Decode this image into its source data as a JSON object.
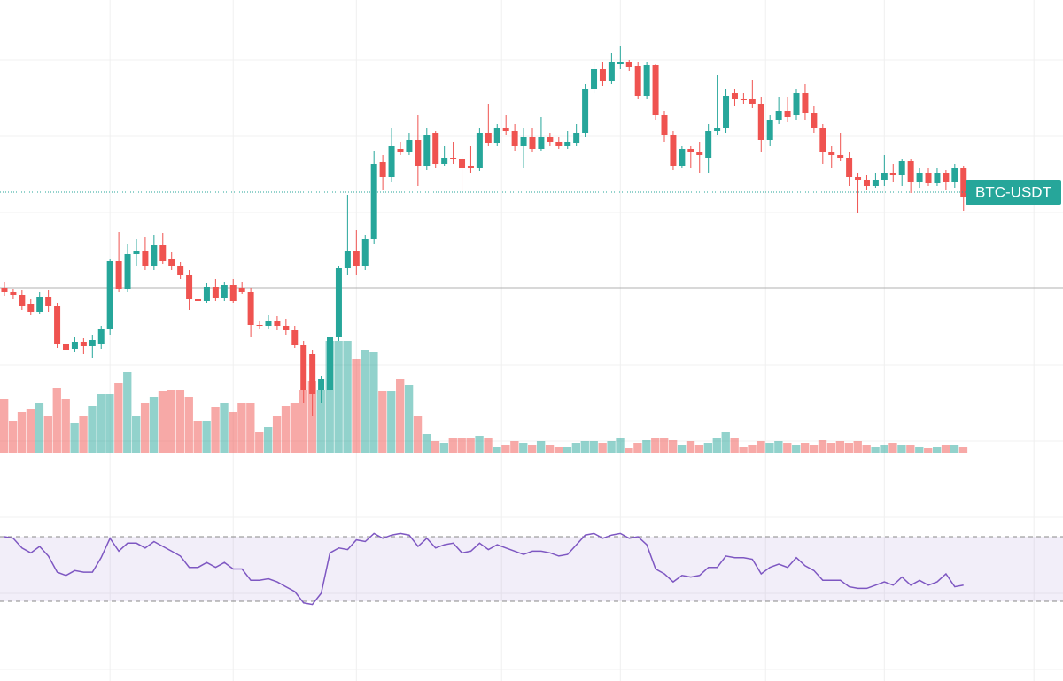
{
  "chart_data": {
    "type": "candlestick",
    "symbol": "BTC-USDT",
    "categories": [
      null,
      null,
      null,
      null,
      null,
      null,
      null,
      null,
      null,
      null,
      null,
      null,
      null,
      null,
      null,
      null,
      null,
      null,
      null,
      null,
      null,
      null,
      null,
      null,
      null,
      null,
      null,
      null,
      null,
      null,
      null,
      null,
      null,
      null,
      null,
      null,
      null,
      null,
      null,
      null,
      null,
      null,
      null,
      null,
      null,
      null,
      null,
      null,
      null,
      null,
      null,
      null,
      null,
      null,
      null,
      null,
      null,
      null,
      null,
      null,
      null,
      null,
      null,
      null,
      null,
      null,
      null,
      null,
      null,
      null,
      null,
      null,
      null,
      null,
      null,
      null,
      null,
      null,
      null,
      null,
      null,
      null,
      null,
      null,
      null,
      null,
      null,
      null,
      null,
      null,
      null,
      null,
      null,
      null,
      null,
      null,
      null,
      null,
      null,
      null,
      null,
      null,
      null,
      null,
      null,
      null,
      null,
      null,
      null,
      null
    ],
    "open": [
      444,
      439,
      436,
      426,
      417,
      434,
      424,
      381,
      375,
      383,
      378,
      381,
      397,
      474,
      443,
      482,
      486,
      469,
      492,
      477,
      469,
      459,
      431,
      429,
      445,
      433,
      447,
      444,
      439,
      402,
      401,
      407,
      401,
      396,
      379,
      369,
      329,
      329,
      389,
      466,
      486,
      469,
      499,
      586,
      569,
      601,
      597,
      611,
      581,
      619,
      584,
      591,
      589,
      581,
      579,
      619,
      607,
      624,
      621,
      604,
      614,
      601,
      614,
      609,
      604,
      607,
      619,
      669,
      691,
      677,
      697,
      699,
      695,
      661,
      696,
      639,
      617,
      581,
      601,
      597,
      591,
      621,
      624,
      664,
      657,
      657,
      651,
      611,
      634,
      644,
      639,
      664,
      641,
      624,
      597,
      594,
      591,
      569,
      566,
      559,
      566,
      574,
      571,
      587,
      564,
      574,
      562,
      574,
      564,
      579
    ],
    "high": [
      451,
      443,
      441,
      431,
      439,
      441,
      427,
      387,
      389,
      387,
      391,
      401,
      477,
      507,
      494,
      499,
      501,
      504,
      506,
      484,
      473,
      464,
      434,
      449,
      454,
      451,
      454,
      451,
      444,
      407,
      413,
      412,
      409,
      401,
      384,
      374,
      344,
      394,
      469,
      549,
      509,
      504,
      599,
      594,
      624,
      609,
      619,
      639,
      624,
      621,
      604,
      609,
      594,
      604,
      624,
      651,
      629,
      639,
      629,
      624,
      624,
      637,
      619,
      614,
      621,
      629,
      674,
      699,
      699,
      709,
      717,
      701,
      699,
      699,
      697,
      644,
      621,
      604,
      604,
      609,
      629,
      684,
      669,
      669,
      664,
      679,
      659,
      639,
      659,
      659,
      669,
      674,
      649,
      629,
      604,
      619,
      597,
      574,
      571,
      574,
      594,
      584,
      589,
      589,
      579,
      579,
      579,
      577,
      584,
      581
    ],
    "low": [
      435,
      431,
      419,
      413,
      414,
      417,
      376,
      369,
      371,
      369,
      365,
      375,
      391,
      439,
      439,
      469,
      464,
      464,
      471,
      464,
      454,
      419,
      416,
      427,
      429,
      429,
      427,
      437,
      389,
      397,
      397,
      396,
      391,
      376,
      314,
      299,
      314,
      321,
      384,
      459,
      459,
      464,
      494,
      554,
      564,
      594,
      594,
      559,
      577,
      579,
      581,
      584,
      554,
      574,
      576,
      604,
      604,
      617,
      599,
      579,
      597,
      599,
      604,
      601,
      601,
      604,
      614,
      664,
      672,
      674,
      691,
      689,
      657,
      657,
      634,
      609,
      577,
      579,
      579,
      574,
      574,
      617,
      619,
      649,
      651,
      647,
      597,
      604,
      629,
      631,
      634,
      634,
      619,
      584,
      579,
      587,
      559,
      529,
      554,
      557,
      559,
      564,
      559,
      551,
      557,
      559,
      559,
      554,
      557,
      531
    ],
    "close": [
      439,
      436,
      424,
      417,
      434,
      423,
      381,
      374,
      383,
      378,
      385,
      397,
      474,
      443,
      482,
      486,
      469,
      492,
      474,
      469,
      459,
      431,
      429,
      445,
      433,
      447,
      429,
      439,
      402,
      401,
      407,
      401,
      396,
      379,
      329,
      324,
      341,
      389,
      466,
      486,
      469,
      499,
      584,
      569,
      604,
      597,
      611,
      581,
      617,
      584,
      591,
      589,
      579,
      579,
      619,
      607,
      624,
      621,
      604,
      614,
      601,
      614,
      609,
      604,
      609,
      619,
      669,
      691,
      677,
      699,
      699,
      693,
      661,
      696,
      639,
      617,
      581,
      601,
      597,
      594,
      621,
      624,
      661,
      657,
      656,
      651,
      611,
      634,
      644,
      637,
      664,
      641,
      624,
      597,
      594,
      591,
      569,
      566,
      559,
      566,
      574,
      571,
      587,
      564,
      574,
      562,
      574,
      564,
      579,
      547
    ],
    "up_color": "#26a69a",
    "down_color": "#ef5350",
    "ylim": [
      0,
      769
    ],
    "yticks": [
      701,
      615,
      529,
      357,
      271,
      185,
      99,
      13
    ],
    "xlim": [
      -0.5,
      120.3
    ],
    "xticks": [
      12,
      26,
      40,
      56.5,
      70,
      86.5,
      100,
      117
    ],
    "grid": true,
    "last_price": 552,
    "base_line": 444,
    "volume": [
      61,
      36,
      46,
      49,
      56,
      41,
      73,
      61,
      33,
      41,
      53,
      66,
      66,
      79,
      91,
      41,
      56,
      63,
      69,
      71,
      71,
      63,
      36,
      36,
      51,
      56,
      46,
      56,
      56,
      23,
      29,
      41,
      53,
      56,
      71,
      81,
      71,
      126,
      126,
      126,
      106,
      116,
      113,
      69,
      69,
      83,
      76,
      41,
      21,
      13,
      11,
      16,
      16,
      16,
      19,
      16,
      6,
      8,
      13,
      11,
      8,
      13,
      8,
      6,
      6,
      11,
      13,
      13,
      11,
      13,
      16,
      5,
      11,
      14,
      16,
      16,
      14,
      8,
      13,
      9,
      11,
      16,
      23,
      16,
      6,
      9,
      13,
      11,
      13,
      11,
      8,
      11,
      8,
      14,
      11,
      13,
      11,
      13,
      8,
      6,
      8,
      11,
      8,
      8,
      6,
      5,
      6,
      8,
      8,
      6
    ],
    "volume_ylim": [
      0,
      140
    ],
    "rsi": [
      70,
      69,
      63,
      60,
      64,
      58,
      48,
      46,
      49,
      48,
      48,
      57,
      69,
      61,
      66,
      66,
      63,
      67,
      64,
      61,
      58,
      51,
      51,
      54,
      51,
      54,
      50,
      50,
      43,
      43,
      44,
      42,
      39,
      36,
      29,
      28,
      35,
      60,
      63,
      62,
      68,
      67,
      72,
      69,
      71,
      72,
      71,
      64,
      69,
      63,
      65,
      66,
      60,
      61,
      66,
      62,
      65,
      63,
      61,
      59,
      61,
      61,
      60,
      58,
      59,
      65,
      71,
      72,
      69,
      71,
      72,
      69,
      70,
      65,
      50,
      47,
      42,
      46,
      45,
      46,
      51,
      51,
      58,
      57,
      57,
      56,
      47,
      51,
      53,
      51,
      57,
      52,
      49,
      43,
      43,
      43,
      39,
      38,
      38,
      40,
      42,
      40,
      45,
      40,
      43,
      40,
      42,
      47,
      39,
      40
    ],
    "rsi_ylim": [
      0,
      100
    ],
    "rsi_bands": [
      30,
      70
    ],
    "rsi_color": "#7e57c2"
  }
}
